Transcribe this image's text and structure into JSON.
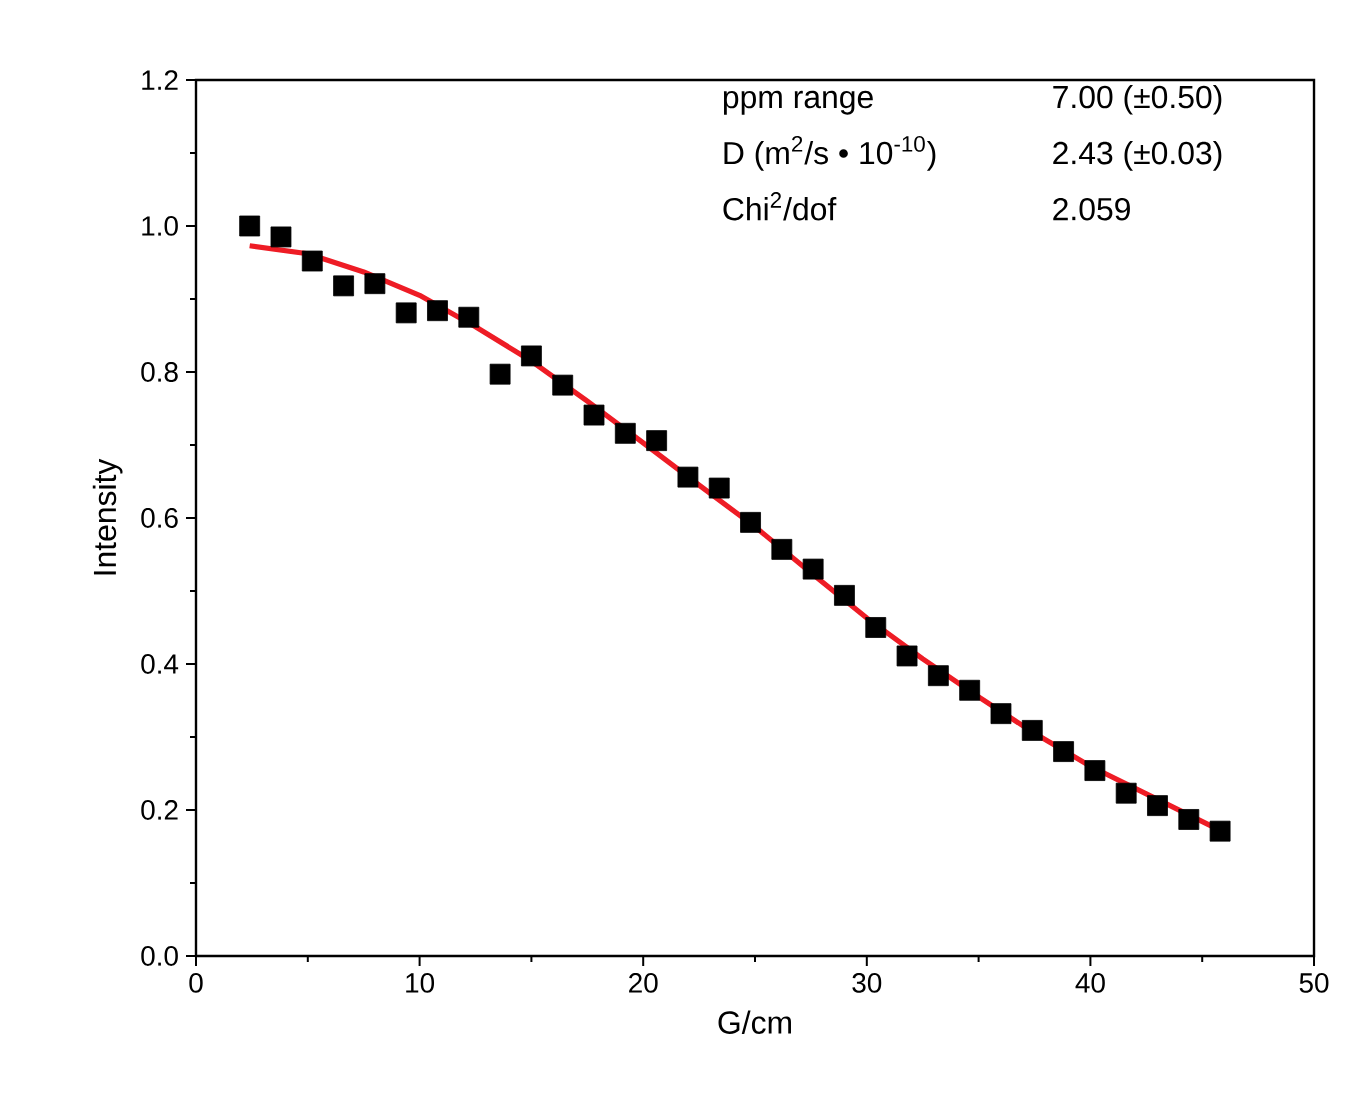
{
  "chart_data": {
    "type": "scatter",
    "xlabel": "G/cm",
    "ylabel": "Intensity",
    "xlim": [
      0,
      50
    ],
    "ylim": [
      0,
      1.2
    ],
    "xticks": [
      0,
      10,
      20,
      30,
      40,
      50
    ],
    "yticks": [
      {
        "value": 0,
        "label": "0.0"
      },
      {
        "value": 0.2,
        "label": "0.2"
      },
      {
        "value": 0.4,
        "label": "0.4"
      },
      {
        "value": 0.6,
        "label": "0.6"
      },
      {
        "value": 0.8,
        "label": "0.8"
      },
      {
        "value": 1.0,
        "label": "1.0"
      },
      {
        "value": 1.2,
        "label": "1.2"
      }
    ],
    "series": [
      {
        "marker": "square",
        "color": "#000000",
        "x": [
          2.4,
          3.8,
          5.2,
          6.6,
          8.0,
          9.4,
          10.8,
          12.2,
          13.6,
          15.0,
          16.4,
          17.8,
          19.2,
          20.6,
          22.0,
          23.4,
          24.8,
          26.2,
          27.6,
          29.0,
          30.4,
          31.8,
          33.2,
          34.6,
          36.0,
          37.4,
          38.8,
          40.2,
          41.6,
          43.0,
          44.4,
          45.8
        ],
        "values": [
          1.0,
          0.985,
          0.952,
          0.918,
          0.921,
          0.881,
          0.884,
          0.875,
          0.797,
          0.822,
          0.782,
          0.741,
          0.716,
          0.706,
          0.656,
          0.641,
          0.594,
          0.557,
          0.53,
          0.494,
          0.45,
          0.411,
          0.384,
          0.364,
          0.332,
          0.309,
          0.28,
          0.254,
          0.223,
          0.206,
          0.187,
          0.171
        ]
      },
      {
        "type": "line",
        "marker": "none",
        "color": "#ee1c25",
        "x": [
          2.4,
          5,
          7.5,
          10,
          12.5,
          15,
          17.5,
          20,
          22.5,
          25,
          27.5,
          30,
          32.5,
          35,
          37.5,
          40,
          42.5,
          45.8
        ],
        "values": [
          0.973,
          0.962,
          0.937,
          0.905,
          0.862,
          0.815,
          0.76,
          0.703,
          0.645,
          0.588,
          0.525,
          0.463,
          0.407,
          0.355,
          0.305,
          0.26,
          0.222,
          0.172
        ]
      }
    ],
    "annotations": [
      "ppm range",
      "7.00 (±0.50)",
      "D (m$^{2}$/s • 10$^{-10}$)",
      "2.43 (±0.03)",
      "Chi$^{2}$/dof",
      "2.059"
    ]
  }
}
